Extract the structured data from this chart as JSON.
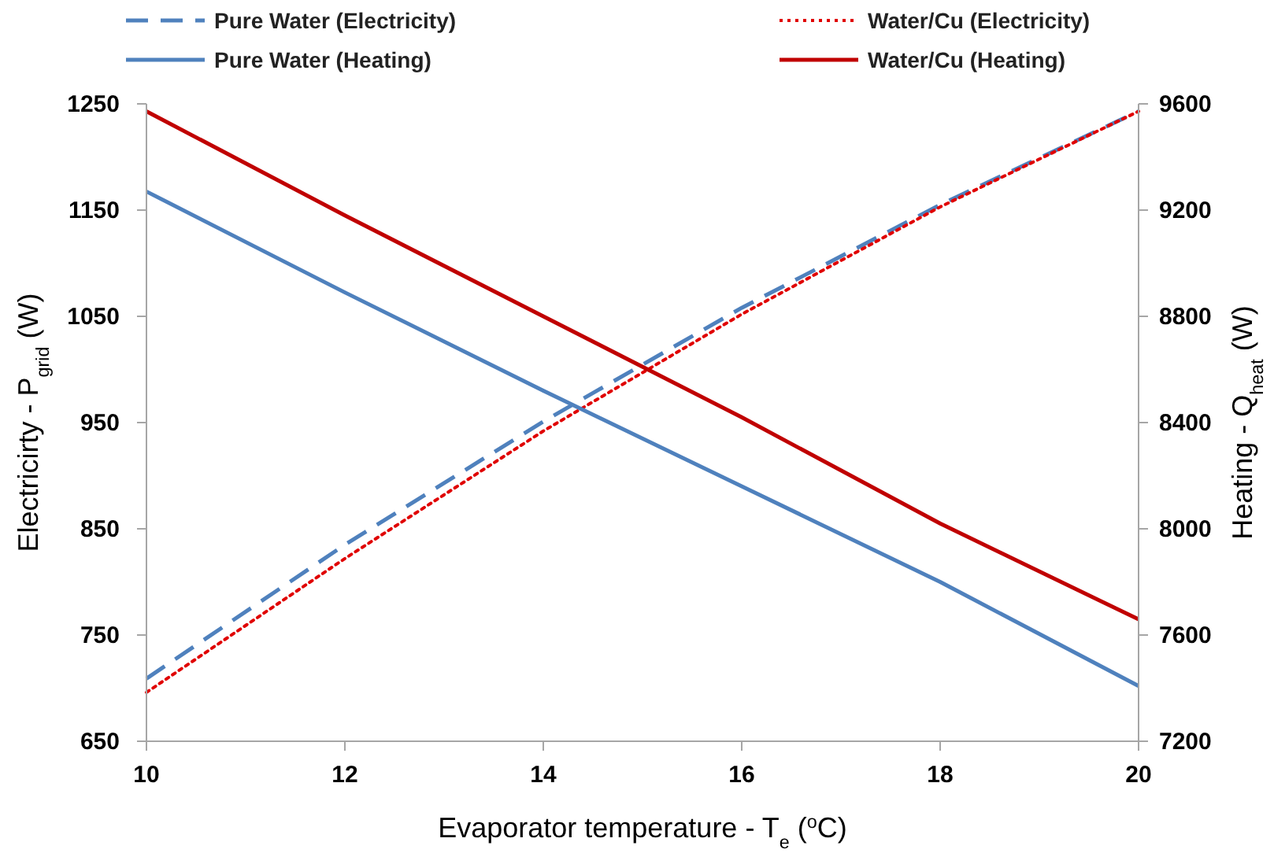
{
  "chart_data": {
    "type": "line",
    "xlabel": "Evaporator temperature - T$_{e}$ ($^{o}$C)",
    "ylabel": "Electricirty - P$_{grid}$ (W)",
    "y2label": "Heating - Q$_{heat}$ (W)",
    "x": [
      10,
      12,
      14,
      16,
      18,
      20
    ],
    "xlim": [
      10,
      20
    ],
    "xticks": [
      10,
      12,
      14,
      16,
      18,
      20
    ],
    "ylim": [
      650,
      1250
    ],
    "yticks": [
      650,
      750,
      850,
      950,
      1050,
      1150,
      1250
    ],
    "y2lim": [
      7200,
      9600
    ],
    "y2ticks": [
      7200,
      7600,
      8000,
      8400,
      8800,
      9200,
      9600
    ],
    "grid": false,
    "legend": "top",
    "marker": "none",
    "series": [
      {
        "name": "Pure Water (Electricity)",
        "color": "#4f81bd",
        "line_style": "dashed",
        "values": [
          709,
          835,
          951,
          1058,
          1155,
          1243
        ]
      },
      {
        "name": "Water/Cu (Electricity)",
        "color": "#e00000",
        "line_style": "dotted",
        "values": [
          696,
          822,
          942,
          1052,
          1153,
          1243
        ]
      },
      {
        "name": "Pure Water (Heating)",
        "color": "#4f81bd",
        "line_style": "solid",
        "axis": "y2",
        "values": [
          9270,
          8890,
          8520,
          8160,
          7800,
          7408
        ]
      },
      {
        "name": "Water/Cu (Heating)",
        "color": "#c00000",
        "line_style": "solid",
        "axis": "y2",
        "values": [
          9572,
          9180,
          8800,
          8420,
          8020,
          7659
        ]
      }
    ]
  }
}
